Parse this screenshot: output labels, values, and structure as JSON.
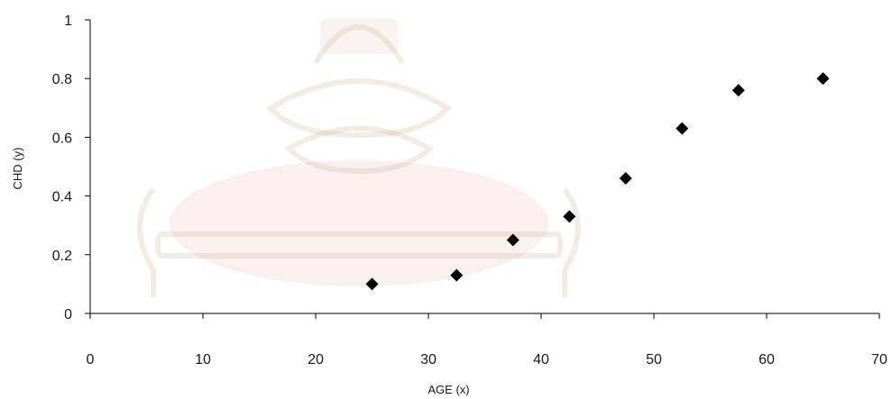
{
  "chart_data": {
    "type": "scatter",
    "title": "",
    "xlabel": "AGE (x)",
    "ylabel": "CHD (y)",
    "xlim": [
      0,
      70
    ],
    "ylim": [
      0,
      1
    ],
    "x_ticks": [
      "0",
      "10",
      "20",
      "30",
      "40",
      "50",
      "60",
      "70"
    ],
    "y_ticks": [
      "0",
      "0.2",
      "0.4",
      "0.6",
      "0.8",
      "1"
    ],
    "grid": false,
    "legend": "none",
    "marker": "diamond",
    "marker_color": "#000000",
    "points": [
      {
        "x": 25,
        "y": 0.1
      },
      {
        "x": 32.5,
        "y": 0.13
      },
      {
        "x": 37.5,
        "y": 0.25
      },
      {
        "x": 42.5,
        "y": 0.33
      },
      {
        "x": 47.5,
        "y": 0.46
      },
      {
        "x": 52.5,
        "y": 0.63
      },
      {
        "x": 57.5,
        "y": 0.76
      },
      {
        "x": 65,
        "y": 0.8
      }
    ]
  },
  "watermark": {
    "kind": "university seal",
    "colors": [
      "#c9a98a",
      "#e2a0a0"
    ]
  }
}
